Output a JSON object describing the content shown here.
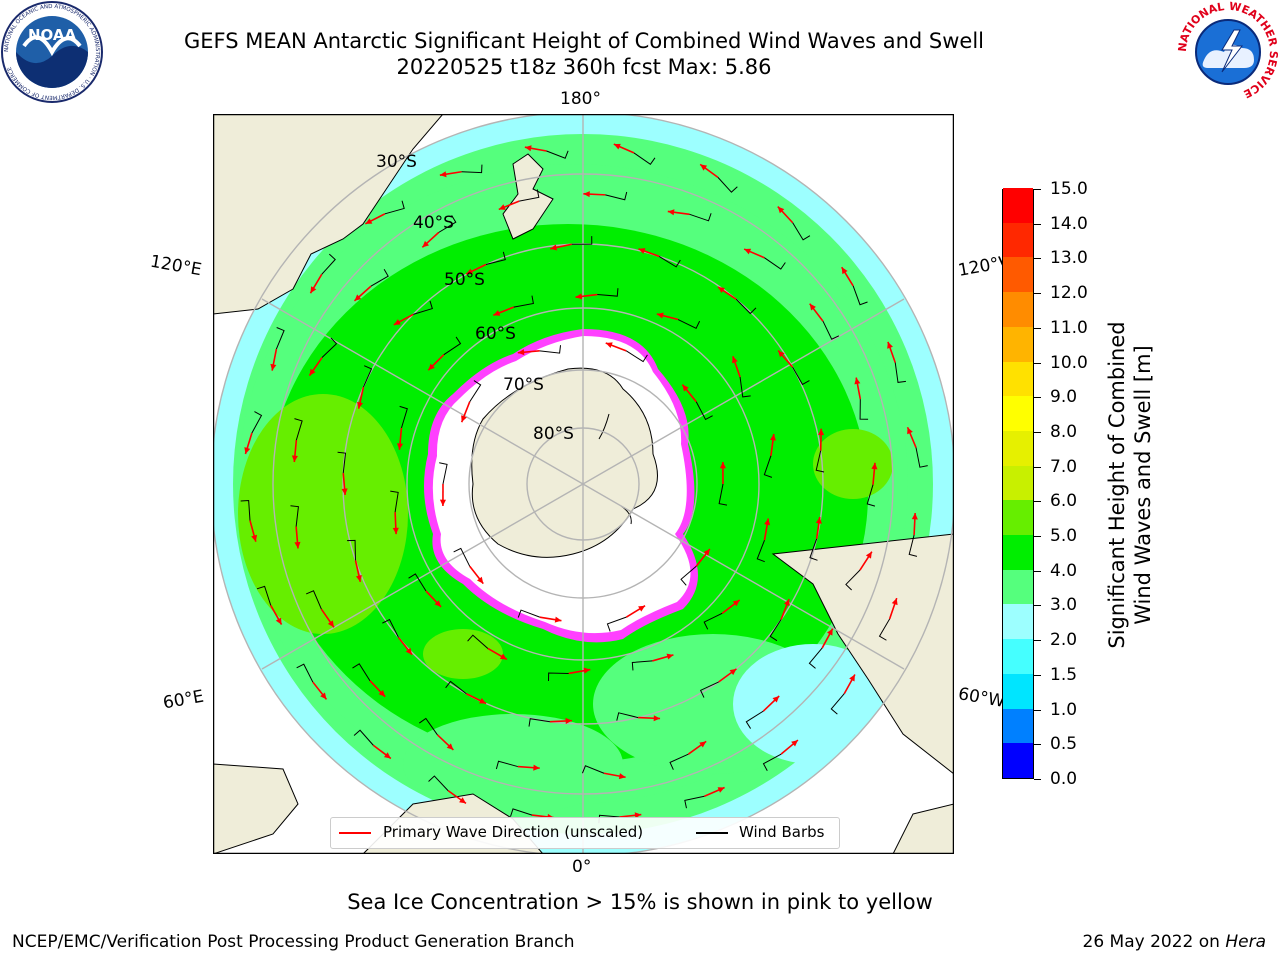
{
  "header": {
    "title_line1": "GEFS MEAN Antarctic Significant Height of Combined Wind Waves and Swell",
    "title_line2": "20220525 t18z 360h fcst   Max: 5.86",
    "noaa_logo_text": "NOAA",
    "noaa_ring_text": "NATIONAL OCEANIC AND ATMOSPHERIC ADMINISTRATION · U.S. DEPARTMENT OF COMMERCE",
    "nws_ring_text": "NATIONAL WEATHER SERVICE"
  },
  "map": {
    "projection": "south-polar-stereographic",
    "longitude_labels": {
      "top": "180°",
      "bottom": "0°",
      "left_upper": "120°E",
      "left_lower": "60°E",
      "right_upper": "120°W",
      "right_lower": "60°W"
    },
    "latitude_labels": [
      "30°S",
      "40°S",
      "50°S",
      "60°S",
      "70°S",
      "80°S"
    ],
    "colors": {
      "land": "#efedd9",
      "ice": "#ffffff",
      "wave_direction_arrow": "#ff0000",
      "wind_barb": "#000000",
      "graticule": "#b4b4b4"
    }
  },
  "colorbar": {
    "label_line1": "Significant Height of Combined",
    "label_line2": "Wind Waves and Swell [m]",
    "ticks": [
      "0.0",
      "0.5",
      "1.0",
      "1.5",
      "2.0",
      "3.0",
      "4.0",
      "5.0",
      "6.0",
      "7.0",
      "8.0",
      "9.0",
      "10.0",
      "11.0",
      "12.0",
      "13.0",
      "14.0",
      "15.0"
    ],
    "colors": [
      "#0000ff",
      "#0080ff",
      "#00e5ff",
      "#45ffff",
      "#9dffff",
      "#55ff7d",
      "#00ee00",
      "#66ee00",
      "#c8f000",
      "#e6f000",
      "#ffff00",
      "#ffe100",
      "#ffb400",
      "#ff8c00",
      "#ff5a00",
      "#ff2800",
      "#ff0000"
    ]
  },
  "legend": {
    "items": [
      {
        "label": "Primary Wave Direction (unscaled)",
        "color": "#ff0000"
      },
      {
        "label": "Wind Barbs",
        "color": "#000000"
      }
    ]
  },
  "caption": "Sea Ice Concentration > 15% is shown in pink to yellow",
  "footer": {
    "left": "NCEP/EMC/Verification Post Processing Product Generation Branch",
    "date": "26 May 2022 on ",
    "host": "Hera"
  }
}
